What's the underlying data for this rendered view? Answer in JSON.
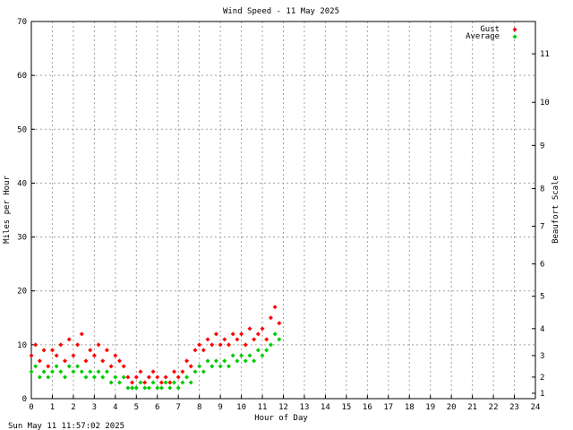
{
  "chart_data": {
    "type": "scatter",
    "title": "Wind Speed - 11 May 2025",
    "xlabel": "Hour of Day",
    "ylabel": "Miles per Hour",
    "y2label": "Beaufort Scale",
    "xlim": [
      0,
      24
    ],
    "ylim": [
      0,
      70
    ],
    "xticks": [
      "0",
      "1",
      "2",
      "3",
      "4",
      "5",
      "6",
      "7",
      "8",
      "9",
      "10",
      "11",
      "12",
      "13",
      "14",
      "15",
      "16",
      "17",
      "18",
      "19",
      "20",
      "21",
      "22",
      "23",
      "24"
    ],
    "yticks": [
      "0",
      "10",
      "20",
      "30",
      "40",
      "50",
      "60",
      "70"
    ],
    "beaufort_ticks": [
      {
        "label": "1",
        "mph": 1
      },
      {
        "label": "2",
        "mph": 4
      },
      {
        "label": "3",
        "mph": 8
      },
      {
        "label": "4",
        "mph": 13
      },
      {
        "label": "5",
        "mph": 19
      },
      {
        "label": "6",
        "mph": 25
      },
      {
        "label": "7",
        "mph": 32
      },
      {
        "label": "8",
        "mph": 39
      },
      {
        "label": "9",
        "mph": 47
      },
      {
        "label": "10",
        "mph": 55
      },
      {
        "label": "11",
        "mph": 64
      }
    ],
    "grid": true,
    "legend_position": "top-right",
    "series": [
      {
        "name": "Gust",
        "color": "#ff0000",
        "marker": "diamond",
        "points": [
          [
            0.0,
            8
          ],
          [
            0.2,
            10
          ],
          [
            0.4,
            7
          ],
          [
            0.6,
            9
          ],
          [
            0.8,
            6
          ],
          [
            1.0,
            9
          ],
          [
            1.2,
            8
          ],
          [
            1.4,
            10
          ],
          [
            1.6,
            7
          ],
          [
            1.8,
            11
          ],
          [
            2.0,
            8
          ],
          [
            2.2,
            10
          ],
          [
            2.4,
            12
          ],
          [
            2.6,
            7
          ],
          [
            2.8,
            9
          ],
          [
            3.0,
            8
          ],
          [
            3.2,
            10
          ],
          [
            3.4,
            7
          ],
          [
            3.6,
            9
          ],
          [
            3.8,
            6
          ],
          [
            4.0,
            8
          ],
          [
            4.2,
            7
          ],
          [
            4.4,
            6
          ],
          [
            4.6,
            4
          ],
          [
            4.8,
            3
          ],
          [
            5.0,
            4
          ],
          [
            5.2,
            5
          ],
          [
            5.4,
            3
          ],
          [
            5.6,
            4
          ],
          [
            5.8,
            5
          ],
          [
            6.0,
            4
          ],
          [
            6.2,
            3
          ],
          [
            6.4,
            4
          ],
          [
            6.6,
            3
          ],
          [
            6.8,
            5
          ],
          [
            7.0,
            4
          ],
          [
            7.2,
            5
          ],
          [
            7.4,
            7
          ],
          [
            7.6,
            6
          ],
          [
            7.8,
            9
          ],
          [
            8.0,
            10
          ],
          [
            8.2,
            9
          ],
          [
            8.4,
            11
          ],
          [
            8.6,
            10
          ],
          [
            8.8,
            12
          ],
          [
            9.0,
            10
          ],
          [
            9.2,
            11
          ],
          [
            9.4,
            10
          ],
          [
            9.6,
            12
          ],
          [
            9.8,
            11
          ],
          [
            10.0,
            12
          ],
          [
            10.2,
            10
          ],
          [
            10.4,
            13
          ],
          [
            10.6,
            11
          ],
          [
            10.8,
            12
          ],
          [
            11.0,
            13
          ],
          [
            11.2,
            11
          ],
          [
            11.4,
            15
          ],
          [
            11.6,
            17
          ],
          [
            11.8,
            14
          ]
        ]
      },
      {
        "name": "Average",
        "color": "#00cc00",
        "marker": "diamond",
        "points": [
          [
            0.0,
            5
          ],
          [
            0.2,
            6
          ],
          [
            0.4,
            4
          ],
          [
            0.6,
            5
          ],
          [
            0.8,
            4
          ],
          [
            1.0,
            5
          ],
          [
            1.2,
            6
          ],
          [
            1.4,
            5
          ],
          [
            1.6,
            4
          ],
          [
            1.8,
            6
          ],
          [
            2.0,
            5
          ],
          [
            2.2,
            6
          ],
          [
            2.4,
            5
          ],
          [
            2.6,
            4
          ],
          [
            2.8,
            5
          ],
          [
            3.0,
            4
          ],
          [
            3.2,
            5
          ],
          [
            3.4,
            4
          ],
          [
            3.6,
            5
          ],
          [
            3.8,
            3
          ],
          [
            4.0,
            4
          ],
          [
            4.2,
            3
          ],
          [
            4.4,
            4
          ],
          [
            4.6,
            2
          ],
          [
            4.8,
            2
          ],
          [
            5.0,
            2
          ],
          [
            5.2,
            3
          ],
          [
            5.4,
            2
          ],
          [
            5.6,
            2
          ],
          [
            5.8,
            3
          ],
          [
            6.0,
            2
          ],
          [
            6.2,
            2
          ],
          [
            6.4,
            3
          ],
          [
            6.6,
            2
          ],
          [
            6.8,
            3
          ],
          [
            7.0,
            2
          ],
          [
            7.2,
            3
          ],
          [
            7.4,
            4
          ],
          [
            7.6,
            3
          ],
          [
            7.8,
            5
          ],
          [
            8.0,
            6
          ],
          [
            8.2,
            5
          ],
          [
            8.4,
            7
          ],
          [
            8.6,
            6
          ],
          [
            8.8,
            7
          ],
          [
            9.0,
            6
          ],
          [
            9.2,
            7
          ],
          [
            9.4,
            6
          ],
          [
            9.6,
            8
          ],
          [
            9.8,
            7
          ],
          [
            10.0,
            8
          ],
          [
            10.2,
            7
          ],
          [
            10.4,
            8
          ],
          [
            10.6,
            7
          ],
          [
            10.8,
            9
          ],
          [
            11.0,
            8
          ],
          [
            11.2,
            9
          ],
          [
            11.4,
            10
          ],
          [
            11.6,
            12
          ],
          [
            11.8,
            11
          ]
        ]
      }
    ]
  },
  "footer": {
    "timestamp": "Sun May 11 11:57:02 2025"
  }
}
